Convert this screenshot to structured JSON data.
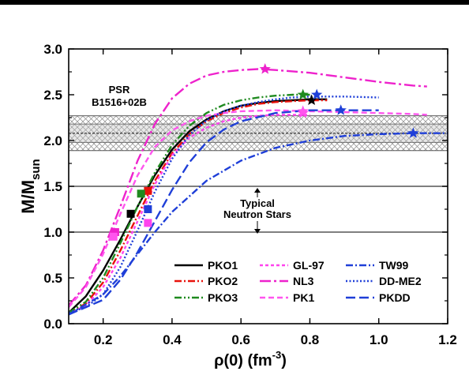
{
  "chart_data": {
    "type": "line",
    "xlim": [
      0.1,
      1.2
    ],
    "ylim": [
      0.0,
      3.0
    ],
    "x_ticks": [
      "0.2",
      "0.4",
      "0.6",
      "0.8",
      "1.0",
      "1.2"
    ],
    "y_ticks": [
      "0.0",
      "0.5",
      "1.0",
      "1.5",
      "2.0",
      "2.5",
      "3.0"
    ],
    "xlabel": "ρ(0) (fm",
    "xlabel_sup": "-3",
    "xlabel_tail": ")",
    "ylabel": "M/M",
    "ylabel_sub": "sun",
    "annotations": {
      "psr_line1": "PSR",
      "psr_line2": "B1516+02B",
      "typical_line1": "Typical",
      "typical_line2": "Neutron Stars"
    },
    "bands": {
      "psr_center": 2.08,
      "psr_inner": [
        1.98,
        2.18
      ],
      "psr_outer": [
        1.89,
        2.27
      ],
      "typical_range": [
        1.0,
        1.5
      ]
    },
    "legend_placement": "bottom-right",
    "series": [
      {
        "name": "PKO1",
        "color": "#000000",
        "dash": "solid",
        "x": [
          0.1,
          0.15,
          0.2,
          0.25,
          0.3,
          0.35,
          0.4,
          0.45,
          0.5,
          0.55,
          0.6,
          0.65,
          0.7,
          0.75,
          0.8,
          0.85
        ],
        "y": [
          0.12,
          0.3,
          0.58,
          0.92,
          1.28,
          1.62,
          1.9,
          2.1,
          2.23,
          2.32,
          2.38,
          2.41,
          2.43,
          2.44,
          2.45,
          2.45
        ],
        "markers": [
          {
            "x": 0.28,
            "y": 1.2,
            "shape": "square"
          },
          {
            "x": 0.805,
            "y": 2.44,
            "shape": "star"
          }
        ]
      },
      {
        "name": "PKO2",
        "color": "#e8120b",
        "dash": "dashdot",
        "x": [
          0.1,
          0.15,
          0.2,
          0.25,
          0.3,
          0.35,
          0.4,
          0.45,
          0.5,
          0.55,
          0.6,
          0.65,
          0.7,
          0.75,
          0.8,
          0.85
        ],
        "y": [
          0.12,
          0.22,
          0.45,
          0.8,
          1.18,
          1.56,
          1.86,
          2.07,
          2.21,
          2.3,
          2.36,
          2.4,
          2.42,
          2.43,
          2.44,
          2.44
        ],
        "markers": [
          {
            "x": 0.33,
            "y": 1.45,
            "shape": "square"
          }
        ]
      },
      {
        "name": "PKO3",
        "color": "#1f8a1f",
        "dash": "dashdotdot",
        "x": [
          0.1,
          0.15,
          0.2,
          0.25,
          0.3,
          0.35,
          0.4,
          0.45,
          0.5,
          0.55,
          0.6,
          0.65,
          0.7,
          0.75,
          0.8
        ],
        "y": [
          0.12,
          0.24,
          0.5,
          0.88,
          1.28,
          1.65,
          1.95,
          2.16,
          2.3,
          2.39,
          2.44,
          2.47,
          2.49,
          2.5,
          2.5
        ],
        "markers": [
          {
            "x": 0.31,
            "y": 1.42,
            "shape": "square"
          },
          {
            "x": 0.78,
            "y": 2.5,
            "shape": "star"
          }
        ]
      },
      {
        "name": "GL-97",
        "color": "#ff44ee",
        "dash": "short",
        "x": [
          0.1,
          0.15,
          0.2,
          0.25,
          0.3,
          0.35,
          0.4,
          0.45,
          0.5,
          0.55,
          0.6,
          0.65,
          0.7,
          0.75,
          0.8
        ],
        "y": [
          0.1,
          0.2,
          0.4,
          0.72,
          1.12,
          1.52,
          1.84,
          2.03,
          2.14,
          2.21,
          2.25,
          2.27,
          2.28,
          2.28,
          2.28
        ],
        "markers": [
          {
            "x": 0.33,
            "y": 1.1,
            "shape": "square"
          },
          {
            "x": 0.78,
            "y": 2.3,
            "shape": "star"
          }
        ]
      },
      {
        "name": "NL3",
        "color": "#ee22cc",
        "dash": "longdashdot",
        "x": [
          0.1,
          0.15,
          0.2,
          0.25,
          0.3,
          0.35,
          0.4,
          0.45,
          0.5,
          0.55,
          0.6,
          0.65,
          0.7,
          0.8,
          0.9,
          1.0,
          1.1,
          1.14
        ],
        "y": [
          0.2,
          0.42,
          0.8,
          1.28,
          1.78,
          2.18,
          2.46,
          2.62,
          2.71,
          2.75,
          2.77,
          2.78,
          2.77,
          2.74,
          2.69,
          2.64,
          2.6,
          2.59
        ],
        "markers": [
          {
            "x": 0.235,
            "y": 1.0,
            "shape": "square"
          },
          {
            "x": 0.67,
            "y": 2.78,
            "shape": "star"
          }
        ]
      },
      {
        "name": "PK1",
        "color": "#ff55ee",
        "dash": "dash",
        "x": [
          0.1,
          0.15,
          0.2,
          0.25,
          0.3,
          0.35,
          0.4,
          0.45,
          0.5,
          0.55,
          0.6,
          0.7,
          0.8,
          0.9,
          1.0,
          1.1,
          1.14
        ],
        "y": [
          0.18,
          0.4,
          0.76,
          1.2,
          1.62,
          1.93,
          2.11,
          2.21,
          2.27,
          2.3,
          2.32,
          2.33,
          2.32,
          2.31,
          2.3,
          2.29,
          2.28
        ],
        "markers": [
          {
            "x": 0.23,
            "y": 0.95,
            "shape": "square"
          },
          {
            "x": 0.78,
            "y": 2.32,
            "shape": "star"
          }
        ]
      },
      {
        "name": "TW99",
        "color": "#1f3fd8",
        "dash": "dashdot",
        "x": [
          0.1,
          0.2,
          0.25,
          0.3,
          0.35,
          0.4,
          0.5,
          0.6,
          0.7,
          0.8,
          0.9,
          1.0,
          1.1,
          1.15,
          1.2
        ],
        "y": [
          0.1,
          0.32,
          0.52,
          0.76,
          1.0,
          1.22,
          1.56,
          1.78,
          1.92,
          2.0,
          2.05,
          2.07,
          2.08,
          2.08,
          2.08
        ],
        "markers": [
          {
            "x": 1.1,
            "y": 2.08,
            "shape": "star"
          }
        ]
      },
      {
        "name": "DD-ME2",
        "color": "#1f3fd8",
        "dash": "dot",
        "x": [
          0.1,
          0.15,
          0.2,
          0.25,
          0.3,
          0.35,
          0.4,
          0.45,
          0.5,
          0.55,
          0.6,
          0.65,
          0.7,
          0.75,
          0.8,
          0.9,
          1.0
        ],
        "y": [
          0.12,
          0.18,
          0.32,
          0.62,
          1.02,
          1.44,
          1.8,
          2.06,
          2.22,
          2.32,
          2.38,
          2.42,
          2.45,
          2.47,
          2.48,
          2.48,
          2.47
        ],
        "markers": [
          {
            "x": 0.33,
            "y": 1.25,
            "shape": "square"
          },
          {
            "x": 0.82,
            "y": 2.5,
            "shape": "star"
          }
        ]
      },
      {
        "name": "PKDD",
        "color": "#1f3fd8",
        "dash": "longdash",
        "x": [
          0.1,
          0.2,
          0.25,
          0.3,
          0.35,
          0.4,
          0.45,
          0.5,
          0.55,
          0.6,
          0.7,
          0.8,
          0.9,
          1.0
        ],
        "y": [
          0.1,
          0.26,
          0.48,
          0.78,
          1.12,
          1.46,
          1.76,
          1.98,
          2.12,
          2.21,
          2.3,
          2.33,
          2.33,
          2.33
        ],
        "markers": [
          {
            "x": 0.89,
            "y": 2.33,
            "shape": "star"
          }
        ]
      }
    ]
  }
}
